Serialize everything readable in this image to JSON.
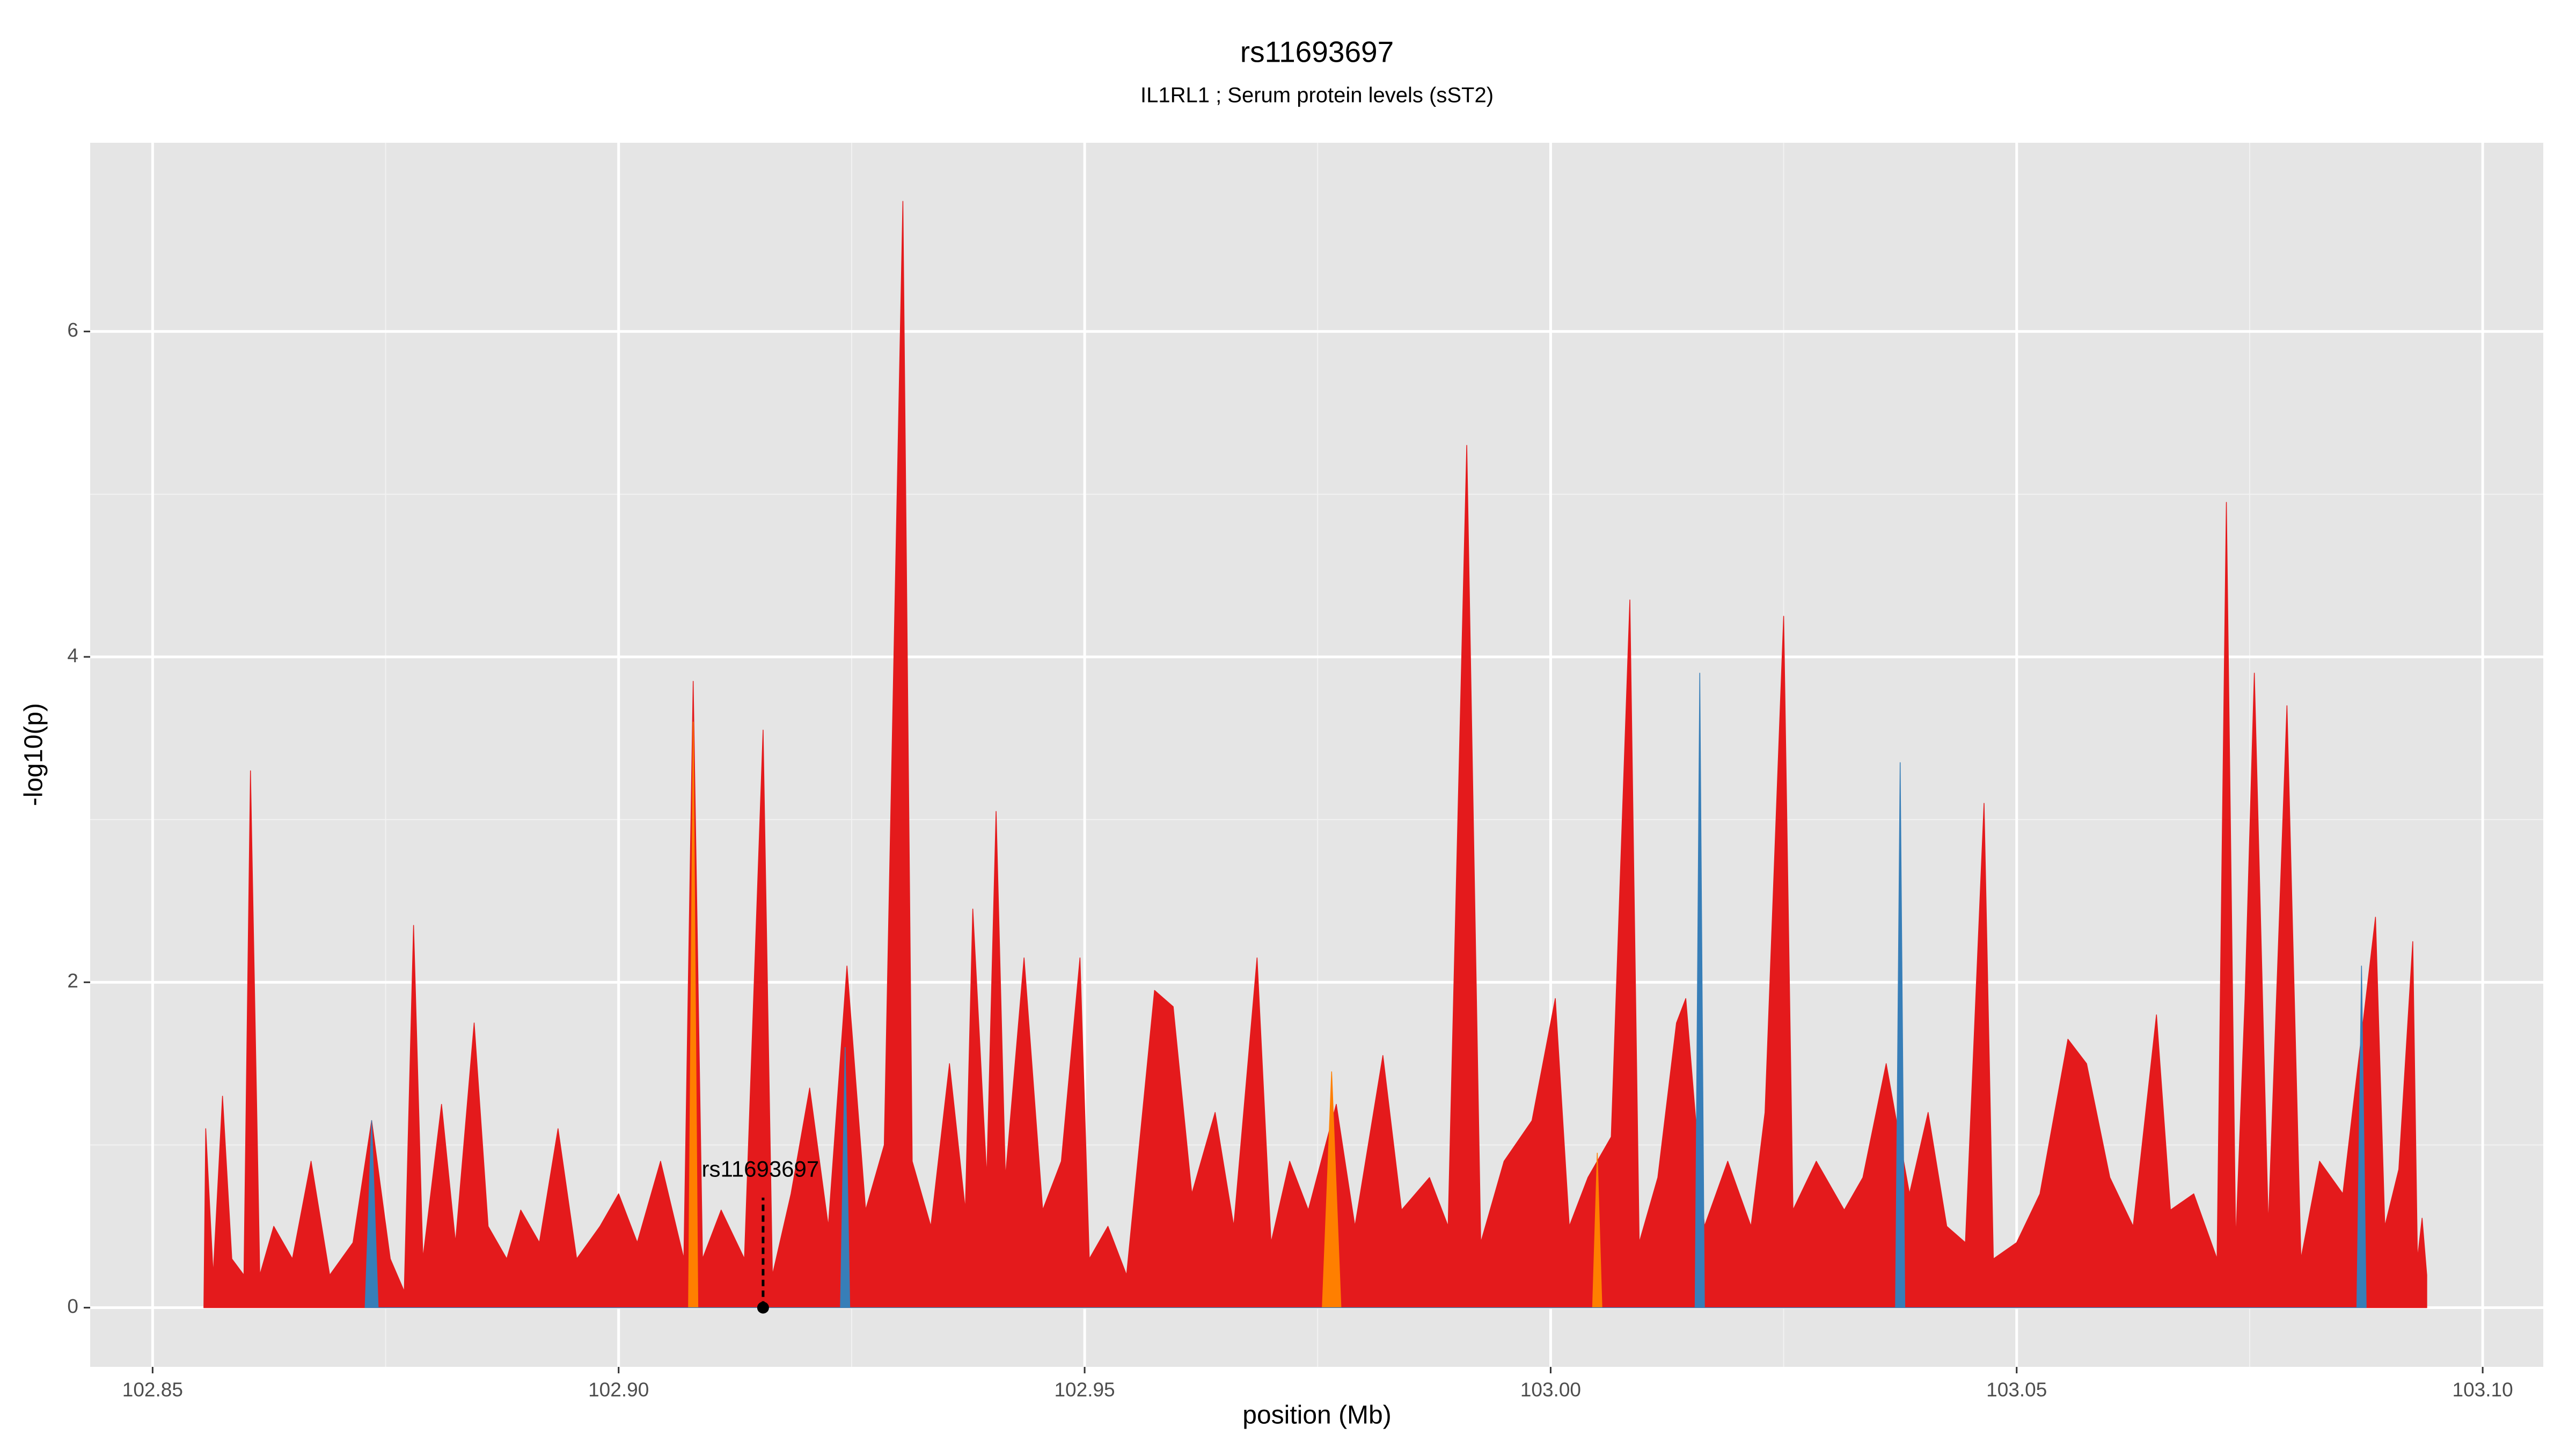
{
  "chart_data": {
    "type": "area",
    "title": "rs11693697",
    "subtitle": "IL1RL1 ; Serum protein levels (sST2)",
    "xlabel": "position (Mb)",
    "ylabel": "-log10(p)",
    "xlim": [
      102.8433,
      103.1065
    ],
    "ylim": [
      -0.364,
      7.16
    ],
    "xticks": [
      102.85,
      {
        "value": 102.9,
        "label": "102.90"
      },
      102.95,
      {
        "value": 103,
        "label": "103.00"
      },
      103.05,
      {
        "value": 103.1,
        "label": "103.10"
      }
    ],
    "yticks": [
      0,
      2,
      4,
      6
    ],
    "grid": true,
    "annotation": {
      "text": "rs11693697",
      "x": 102.9155,
      "y": 0
    },
    "series": [
      {
        "color": "#e41a1c",
        "x": [
          102.8555,
          102.8557,
          102.8565,
          102.8575,
          102.8585,
          102.8598,
          102.8605,
          102.8615,
          102.863,
          102.865,
          102.867,
          102.869,
          102.8715,
          102.8735,
          102.8755,
          102.877,
          102.878,
          102.879,
          102.881,
          102.8825,
          102.8845,
          102.886,
          102.888,
          102.8895,
          102.8915,
          102.8935,
          102.8955,
          102.898,
          102.9,
          102.902,
          102.9045,
          102.907,
          102.908,
          102.909,
          102.911,
          102.9135,
          102.9155,
          102.9165,
          102.9185,
          102.9205,
          102.9225,
          102.9245,
          102.9265,
          102.9285,
          102.9305,
          102.9315,
          102.9335,
          102.9355,
          102.9372,
          102.938,
          102.9395,
          102.9405,
          102.9415,
          102.9435,
          102.9455,
          102.9475,
          102.9495,
          102.9505,
          102.9525,
          102.9545,
          102.9575,
          102.9595,
          102.9615,
          102.964,
          102.966,
          102.9685,
          102.97,
          102.972,
          102.974,
          102.977,
          102.979,
          102.982,
          102.984,
          102.987,
          102.989,
          102.991,
          102.9925,
          102.995,
          102.998,
          103.0005,
          103.002,
          103.004,
          103.0065,
          103.0085,
          103.0095,
          103.0115,
          103.0135,
          103.0145,
          103.0165,
          103.019,
          103.0215,
          103.023,
          103.025,
          103.026,
          103.0285,
          103.0315,
          103.0335,
          103.036,
          103.0385,
          103.0405,
          103.0425,
          103.0445,
          103.0465,
          103.0475,
          103.05,
          103.0525,
          103.0555,
          103.0575,
          103.06,
          103.0625,
          103.065,
          103.0665,
          103.069,
          103.0715,
          103.0725,
          103.0735,
          103.0745,
          103.0755,
          103.077,
          103.079,
          103.0805,
          103.0825,
          103.085,
          103.0885,
          103.0895,
          103.091,
          103.0925,
          103.093,
          103.0935,
          103.094
        ],
        "values": [
          0,
          1.1,
          0.2,
          1.3,
          0.3,
          0.2,
          3.3,
          0.2,
          0.5,
          0.3,
          0.9,
          0.2,
          0.4,
          1.15,
          0.3,
          0.1,
          2.35,
          0.3,
          1.25,
          0.4,
          1.75,
          0.5,
          0.3,
          0.6,
          0.4,
          1.1,
          0.3,
          0.5,
          0.7,
          0.4,
          0.9,
          0.3,
          3.85,
          0.3,
          0.6,
          0.3,
          3.55,
          0.2,
          0.7,
          1.35,
          0.5,
          2.1,
          0.6,
          1.0,
          6.8,
          0.9,
          0.5,
          1.5,
          0.6,
          2.45,
          0.8,
          3.05,
          0.8,
          2.15,
          0.6,
          0.9,
          2.15,
          0.3,
          0.5,
          0.2,
          1.95,
          1.85,
          0.7,
          1.2,
          0.5,
          2.15,
          0.4,
          0.9,
          0.6,
          1.25,
          0.5,
          1.55,
          0.6,
          0.8,
          0.5,
          5.3,
          0.4,
          0.9,
          1.15,
          1.9,
          0.5,
          0.8,
          1.05,
          4.35,
          0.4,
          0.8,
          1.75,
          1.9,
          0.5,
          0.9,
          0.5,
          1.2,
          4.25,
          0.6,
          0.9,
          0.6,
          0.8,
          1.5,
          0.7,
          1.2,
          0.5,
          0.4,
          3.1,
          0.3,
          0.4,
          0.7,
          1.65,
          1.5,
          0.8,
          0.5,
          1.8,
          0.6,
          0.7,
          0.3,
          4.95,
          0.4,
          1.9,
          3.9,
          0.5,
          3.7,
          0.3,
          0.9,
          0.7,
          2.4,
          0.5,
          0.85,
          2.25,
          0.3,
          0.55,
          0.2
        ]
      },
      {
        "color": "#ff7f00",
        "x": [
          102.9075,
          102.908,
          102.9085,
          102.9755,
          102.9765,
          102.9775,
          103.0045,
          103.005,
          103.0055
        ],
        "values": [
          0,
          3.6,
          0,
          0,
          1.45,
          0,
          0,
          0.95,
          0
        ]
      },
      {
        "color": "#377eb8",
        "x": [
          102.8728,
          102.8735,
          102.8742,
          102.9238,
          102.9243,
          102.9248,
          103.0155,
          103.016,
          103.0165,
          103.037,
          103.0375,
          103.038,
          103.0865,
          103.087,
          103.0875
        ],
        "values": [
          0,
          1.15,
          0,
          0,
          1.6,
          0,
          0,
          3.9,
          0,
          0,
          3.35,
          0,
          0,
          2.1,
          0
        ]
      }
    ]
  }
}
